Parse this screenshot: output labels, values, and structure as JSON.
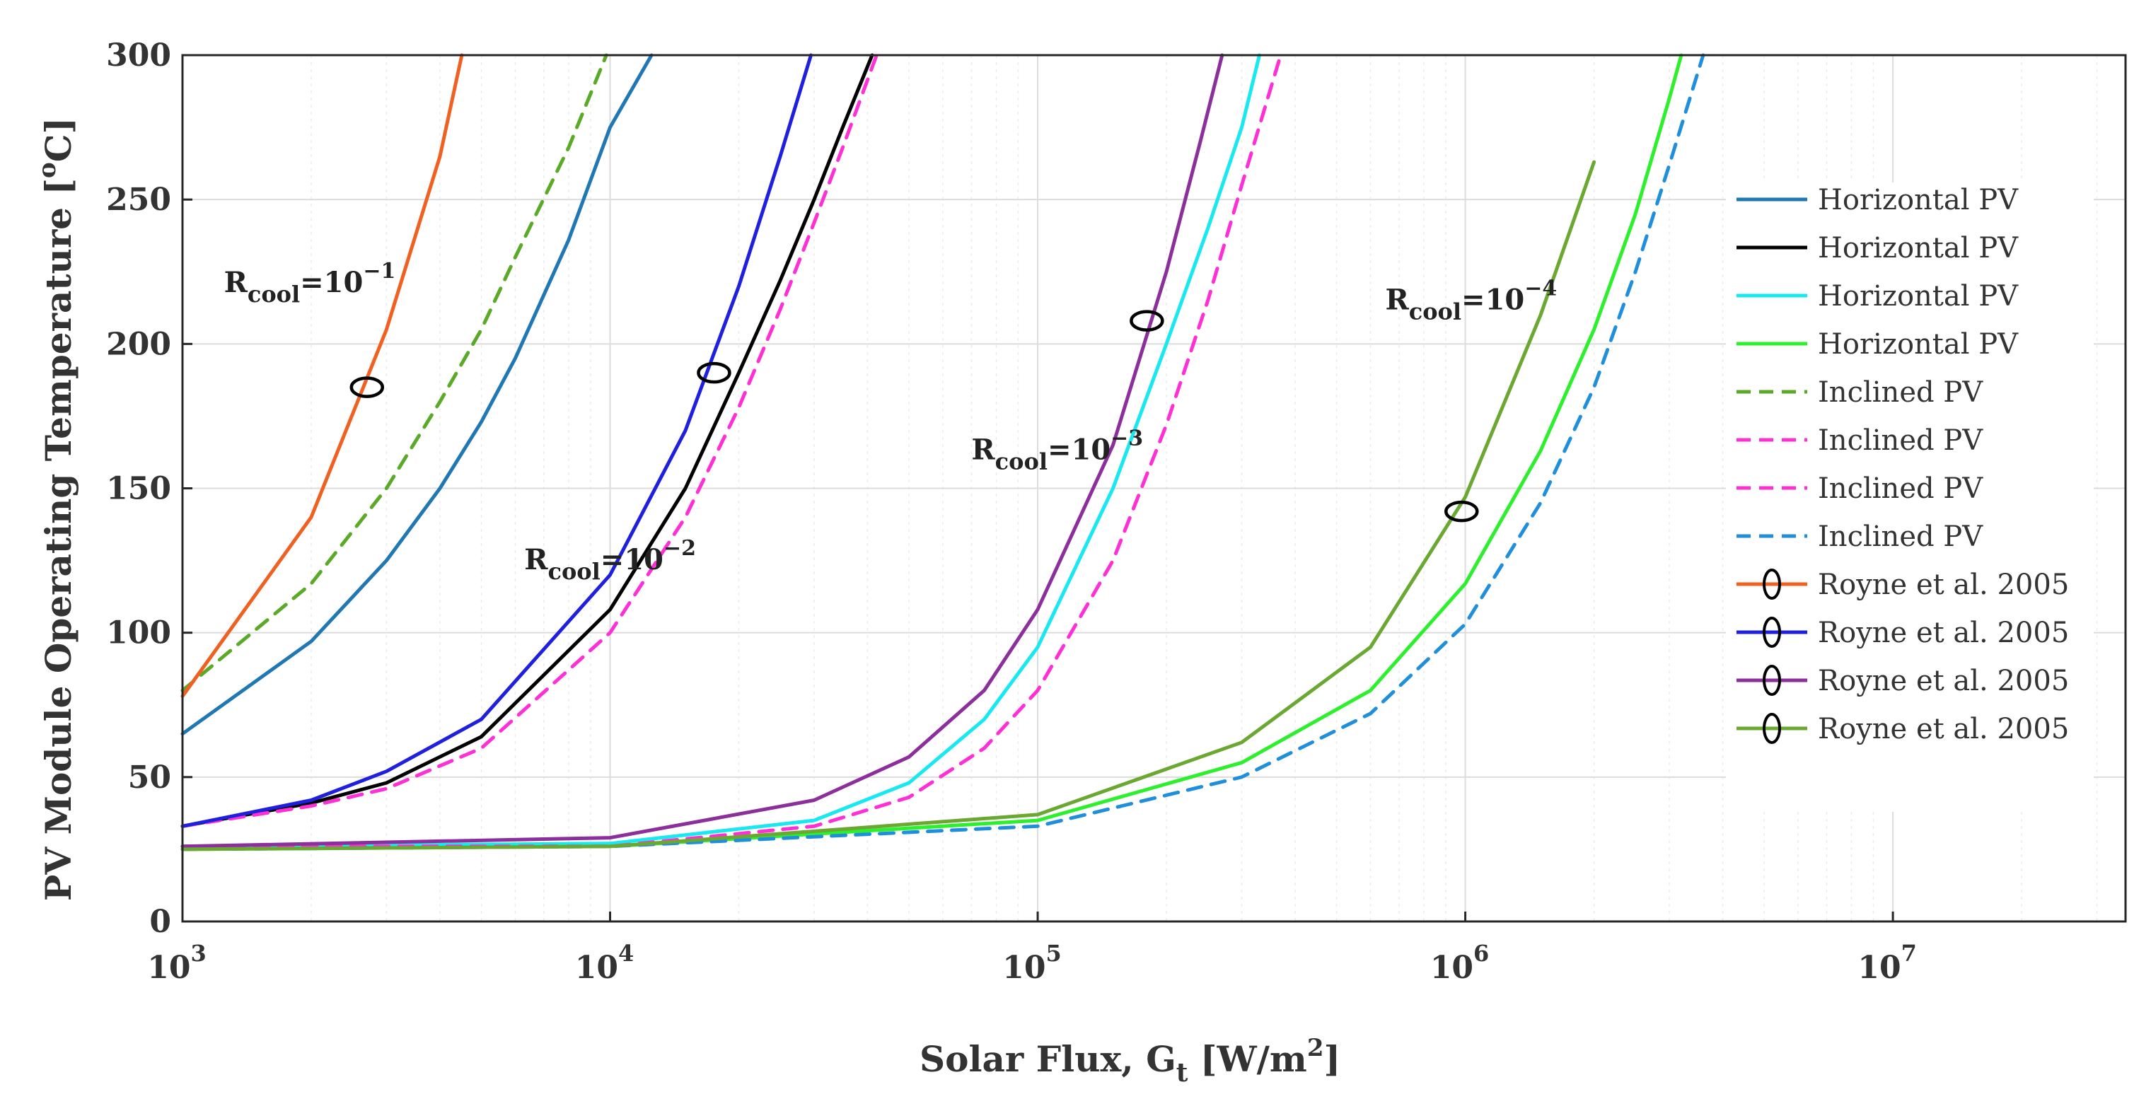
{
  "chart_data": {
    "type": "line",
    "x_scale": "log",
    "xlim": [
      1000,
      35000000
    ],
    "ylim": [
      0,
      300
    ],
    "xlabel": "Solar Flux, G",
    "xlabel_sub": "t",
    "xlabel_unit_pre": " [W/m",
    "xlabel_unit_sup": "2",
    "xlabel_unit_post": "]",
    "ylabel": "PV Module Operating Temperature [",
    "ylabel_sup": "o",
    "ylabel_post": "C]",
    "x_ticks": [
      {
        "value": 1000,
        "base": "10",
        "exp": "3"
      },
      {
        "value": 10000,
        "base": "10",
        "exp": "4"
      },
      {
        "value": 100000,
        "base": "10",
        "exp": "5"
      },
      {
        "value": 1000000,
        "base": "10",
        "exp": "6"
      },
      {
        "value": 10000000,
        "base": "10",
        "exp": "7"
      }
    ],
    "y_ticks": [
      {
        "value": 0,
        "label": "0"
      },
      {
        "value": 50,
        "label": "50"
      },
      {
        "value": 100,
        "label": "100"
      },
      {
        "value": 150,
        "label": "150"
      },
      {
        "value": 200,
        "label": "200"
      },
      {
        "value": 250,
        "label": "250"
      },
      {
        "value": 300,
        "label": "300"
      }
    ],
    "grid": true,
    "legend_position": "right",
    "series": [
      {
        "name": "Horizontal PV",
        "color": "#1f77b4",
        "dash": "solid",
        "marker": false,
        "x": [
          1000,
          2000,
          3000,
          4000,
          5000,
          6000,
          8000,
          10000,
          12500
        ],
        "y": [
          65,
          97,
          125,
          150,
          173,
          195,
          236,
          275,
          300
        ]
      },
      {
        "name": "Horizontal PV",
        "color": "#000000",
        "dash": "solid",
        "marker": false,
        "x": [
          1000,
          2000,
          3000,
          5000,
          10000,
          15000,
          20000,
          25000,
          30000,
          35000,
          41000
        ],
        "y": [
          33,
          41,
          48,
          64,
          108,
          150,
          190,
          222,
          250,
          275,
          300
        ]
      },
      {
        "name": "Horizontal PV",
        "color": "#18e8f0",
        "dash": "solid",
        "marker": false,
        "x": [
          1000,
          10000,
          30000,
          50000,
          75000,
          100000,
          150000,
          200000,
          250000,
          300000,
          330000
        ],
        "y": [
          26,
          27,
          35,
          48,
          70,
          95,
          150,
          200,
          240,
          275,
          300
        ]
      },
      {
        "name": "Horizontal PV",
        "color": "#2df02d",
        "dash": "solid",
        "marker": false,
        "x": [
          1000,
          10000,
          100000,
          300000,
          600000,
          1000000,
          1500000,
          2000000,
          2500000,
          3000000,
          3200000
        ],
        "y": [
          25,
          26,
          35,
          55,
          80,
          117,
          163,
          205,
          245,
          285,
          300
        ]
      },
      {
        "name": "Inclined PV",
        "color": "#5aaa28",
        "dash": "dashed",
        "marker": false,
        "x": [
          1000,
          2000,
          3000,
          4000,
          5000,
          6000,
          8000,
          9800
        ],
        "y": [
          80,
          117,
          150,
          180,
          205,
          230,
          268,
          300
        ]
      },
      {
        "name": "Inclined PV",
        "color": "#ff2fd6",
        "dash": "dashed",
        "marker": false,
        "x": [
          1000,
          2000,
          3000,
          5000,
          10000,
          15000,
          20000,
          25000,
          30000,
          35000,
          42000
        ],
        "y": [
          33,
          40,
          46,
          60,
          100,
          140,
          178,
          212,
          242,
          268,
          300
        ]
      },
      {
        "name": "Inclined PV",
        "color": "#ff2fd6",
        "dash": "dashed",
        "marker": false,
        "x": [
          1000,
          10000,
          30000,
          50000,
          75000,
          100000,
          150000,
          200000,
          250000,
          300000,
          370000
        ],
        "y": [
          26,
          26,
          33,
          43,
          60,
          80,
          125,
          172,
          215,
          255,
          300
        ]
      },
      {
        "name": "Inclined PV",
        "color": "#1f8fdc",
        "dash": "dashed",
        "marker": false,
        "x": [
          1000,
          10000,
          100000,
          300000,
          600000,
          1000000,
          1500000,
          2000000,
          2500000,
          3000000,
          3600000
        ],
        "y": [
          25,
          26,
          33,
          50,
          72,
          103,
          145,
          185,
          225,
          262,
          300
        ]
      },
      {
        "name": "Royne et al. 2005",
        "color": "#f06020",
        "dash": "solid",
        "marker": true,
        "marker_x": 2700,
        "marker_y": 185,
        "x": [
          1000,
          2000,
          3000,
          4000,
          4500
        ],
        "y": [
          78,
          140,
          205,
          265,
          300
        ]
      },
      {
        "name": "Royne et al. 2005",
        "color": "#1f1fe0",
        "dash": "solid",
        "marker": true,
        "marker_x": 17500,
        "marker_y": 190,
        "x": [
          1000,
          2000,
          3000,
          5000,
          10000,
          15000,
          20000,
          25000,
          29500
        ],
        "y": [
          33,
          42,
          52,
          70,
          120,
          170,
          220,
          265,
          300
        ]
      },
      {
        "name": "Royne et al. 2005",
        "color": "#8c2f9c",
        "dash": "solid",
        "marker": true,
        "marker_x": 180000,
        "marker_y": 208,
        "x": [
          1000,
          10000,
          30000,
          50000,
          75000,
          100000,
          150000,
          200000,
          240000,
          270000
        ],
        "y": [
          26,
          29,
          42,
          57,
          80,
          108,
          165,
          225,
          270,
          300
        ]
      },
      {
        "name": "Royne et al. 2005",
        "color": "#6aa832",
        "dash": "solid",
        "marker": true,
        "marker_x": 980000,
        "marker_y": 142,
        "x": [
          1000,
          10000,
          100000,
          300000,
          600000,
          1000000,
          1500000,
          2000000
        ],
        "y": [
          25,
          26,
          37,
          62,
          95,
          147,
          210,
          263
        ]
      }
    ],
    "annotations": [
      {
        "base": "R",
        "sub": "cool",
        "mid": "=10",
        "sup": "−1",
        "x": 1250,
        "y": 218
      },
      {
        "base": "R",
        "sub": "cool",
        "mid": "=10",
        "sup": "−2",
        "x": 6300,
        "y": 122
      },
      {
        "base": "R",
        "sub": "cool",
        "mid": "=10",
        "sup": "−3",
        "x": 70000,
        "y": 160
      },
      {
        "base": "R",
        "sub": "cool",
        "mid": "=10",
        "sup": "−4",
        "x": 650000,
        "y": 212
      }
    ]
  }
}
